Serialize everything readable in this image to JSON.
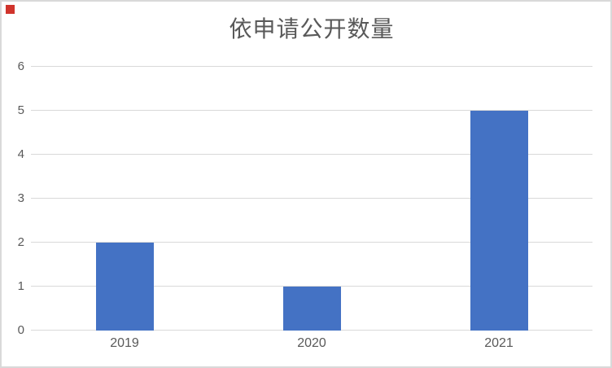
{
  "page": {
    "background_color": "#ffffff",
    "border_color": "#d9d9d9"
  },
  "marker": {
    "label": "red-square-marker",
    "color": "#d0342c"
  },
  "chart_data": {
    "type": "bar",
    "title": "依申请公开数量",
    "categories": [
      "2019",
      "2020",
      "2021"
    ],
    "values": [
      2,
      1,
      5
    ],
    "xlabel": "",
    "ylabel": "",
    "ylim": [
      0,
      6
    ],
    "yticks": [
      0,
      1,
      2,
      3,
      4,
      5,
      6
    ],
    "grid": true,
    "legend": false,
    "bar_color": "#4472C4",
    "gridline_color": "#d9d9d9",
    "axis_label_color": "#595959",
    "title_color": "#595959"
  }
}
